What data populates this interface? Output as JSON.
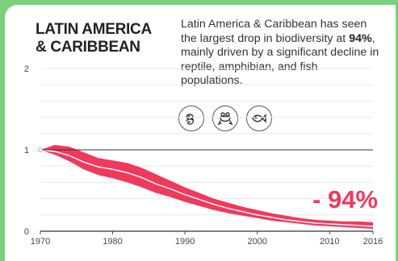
{
  "heading": {
    "line1": "LATIN AMERICA",
    "line2": "& CARIBBEAN"
  },
  "description": {
    "prefix": "Latin America & Caribbean has seen the largest drop in biodiversity at ",
    "highlight": "94%",
    "suffix": ", mainly driven by a significant decline in reptile, amphibian, and fish populations."
  },
  "icons": [
    "lizard-icon",
    "frog-icon",
    "fish-icon"
  ],
  "chart_data": {
    "type": "area",
    "title": "",
    "xlabel": "",
    "ylabel": "",
    "xlim": [
      1970,
      2016
    ],
    "ylim": [
      0,
      2
    ],
    "x_ticks": [
      "1970",
      "1980",
      "1990",
      "2000",
      "2010",
      "2016"
    ],
    "y_ticks": [
      "0",
      "1",
      "2"
    ],
    "baseline": 1,
    "grid": true,
    "annotation": "- 94%",
    "color": "#ef3a5d",
    "index_line_color": "#ffffff",
    "series": [
      {
        "x": [
          1970,
          1972,
          1974,
          1976,
          1978,
          1980,
          1982,
          1984,
          1986,
          1988,
          1990,
          1992,
          1994,
          1996,
          1998,
          2000,
          2002,
          2004,
          2006,
          2008,
          2010,
          2012,
          2014,
          2016
        ],
        "y": [
          1.0,
          0.98,
          0.93,
          0.85,
          0.79,
          0.76,
          0.72,
          0.66,
          0.58,
          0.52,
          0.45,
          0.39,
          0.33,
          0.28,
          0.24,
          0.2,
          0.17,
          0.14,
          0.12,
          0.1,
          0.09,
          0.08,
          0.07,
          0.06
        ],
        "lower": [
          1.0,
          0.94,
          0.86,
          0.76,
          0.69,
          0.65,
          0.6,
          0.54,
          0.47,
          0.42,
          0.36,
          0.31,
          0.26,
          0.22,
          0.19,
          0.16,
          0.13,
          0.11,
          0.09,
          0.07,
          0.06,
          0.05,
          0.04,
          0.03
        ],
        "upper": [
          1.0,
          1.06,
          1.04,
          0.97,
          0.9,
          0.87,
          0.84,
          0.78,
          0.7,
          0.62,
          0.54,
          0.47,
          0.4,
          0.35,
          0.3,
          0.26,
          0.22,
          0.19,
          0.16,
          0.14,
          0.13,
          0.12,
          0.12,
          0.11
        ]
      }
    ]
  }
}
